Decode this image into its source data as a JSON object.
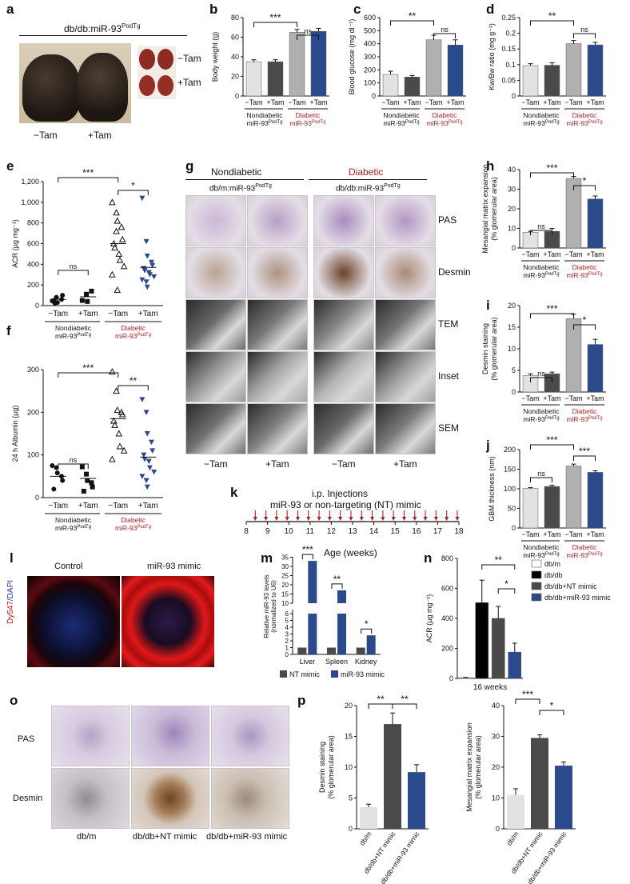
{
  "panel_letters": {
    "a": "a",
    "b": "b",
    "c": "c",
    "d": "d",
    "e": "e",
    "f": "f",
    "g": "g",
    "h": "h",
    "i": "i",
    "j": "j",
    "k": "k",
    "l": "l",
    "m": "m",
    "n": "n",
    "o": "o",
    "p": "p"
  },
  "colors": {
    "light": "#e2e2e2",
    "dark": "#4a4a4a",
    "lightgray": "#b0b0b0",
    "navy": "#2b4a8c",
    "diabetic_red": "#b01e23",
    "black": "#111111"
  },
  "group_labels": {
    "minus_tam": "−Tam",
    "plus_tam": "+Tam",
    "nondiabetic": "Nondiabetic",
    "diabetic": "Diabetic",
    "mir_podtg": "miR-93",
    "podtg_sup": "PodTg"
  },
  "panel_a": {
    "title": "db/db:miR-93",
    "title_sup": "PodTg",
    "label_minus": "−Tam",
    "label_plus": "+Tam",
    "kidney_minus": "−Tam",
    "kidney_plus": "+Tam"
  },
  "panel_g": {
    "nondiabetic": "Nondiabetic",
    "diabetic": "Diabetic",
    "dbm": "db/m:miR-93",
    "dbdb": "db/db:miR-93",
    "sup": "PodTg",
    "rows": [
      "PAS",
      "Desmin",
      "TEM",
      "Inset",
      "SEM"
    ],
    "cols": [
      "−Tam",
      "+Tam",
      "−Tam",
      "+Tam"
    ]
  },
  "panel_k": {
    "title1": "i.p. Injections",
    "title2": "miR-93 or non-targeting (NT) mimic",
    "xlabel": "Age (weeks)",
    "ticks": [
      "8",
      "9",
      "10",
      "11",
      "12",
      "13",
      "14",
      "15",
      "16",
      "17",
      "18"
    ]
  },
  "panel_l": {
    "control": "Control",
    "mimic": "miR-93 mimic",
    "ylabel1": "Dy547",
    "ylabel2": "/DAPI"
  },
  "panel_o": {
    "rows": [
      "PAS",
      "Desmin"
    ],
    "cols": [
      "db/m",
      "db/db+NT mimic",
      "db/db+miR-93 mimic"
    ]
  },
  "chart_data": [
    {
      "id": "b",
      "type": "bar",
      "ylabel": "Body weight (g)",
      "ylim": [
        0,
        80
      ],
      "yticks": [
        0,
        20,
        40,
        60,
        80
      ],
      "categories": [
        "−Tam",
        "+Tam",
        "−Tam",
        "+Tam"
      ],
      "values": [
        35,
        35,
        65,
        66
      ],
      "errors": [
        2,
        2,
        3,
        3
      ],
      "groups": [
        "Nondiabetic miR-93 PodTg",
        "Diabetic miR-93 PodTg"
      ],
      "sig": [
        "***",
        "ns"
      ]
    },
    {
      "id": "c",
      "type": "bar",
      "ylabel": "Blood glucose (mg dl⁻¹)",
      "ylim": [
        0,
        600
      ],
      "yticks": [
        0,
        100,
        200,
        300,
        400,
        500,
        600
      ],
      "categories": [
        "−Tam",
        "+Tam",
        "−Tam",
        "+Tam"
      ],
      "values": [
        165,
        145,
        430,
        390
      ],
      "errors": [
        25,
        12,
        35,
        40
      ],
      "groups": [
        "Nondiabetic miR-93 PodTg",
        "Diabetic miR-93 PodTg"
      ],
      "sig": [
        "**",
        "ns"
      ]
    },
    {
      "id": "d",
      "type": "bar",
      "ylabel": "Kw/Bw ratio (mg g⁻¹)",
      "ylim": [
        0,
        0.25
      ],
      "yticks": [
        0,
        0.05,
        0.1,
        0.15,
        0.2,
        0.25
      ],
      "categories": [
        "−Tam",
        "+Tam",
        "−Tam",
        "+Tam"
      ],
      "values": [
        0.097,
        0.098,
        0.167,
        0.163
      ],
      "errors": [
        0.006,
        0.008,
        0.01,
        0.008
      ],
      "groups": [
        "Nondiabetic miR-93 PodTg",
        "Diabetic miR-93 PodTg"
      ],
      "sig": [
        "**",
        "ns"
      ]
    },
    {
      "id": "e",
      "type": "scatter",
      "ylabel": "ACR (µg mg⁻¹)",
      "ylim": [
        0,
        1200
      ],
      "yticks": [
        0,
        200,
        400,
        600,
        800,
        1000,
        1200
      ],
      "ytick_labels": [
        "0",
        "200",
        "400",
        "600",
        "800",
        "1,000",
        "1,200"
      ],
      "categories": [
        "−Tam",
        "+Tam",
        "−Tam",
        "+Tam"
      ],
      "points": [
        [
          45,
          80,
          30,
          60,
          100,
          50,
          25
        ],
        [
          50,
          110,
          40,
          140
        ],
        [
          1000,
          900,
          820,
          760,
          640,
          600,
          560,
          500,
          440,
          380,
          300,
          720,
          150
        ],
        [
          1040,
          620,
          480,
          420,
          390,
          360,
          340,
          320,
          300,
          280,
          250,
          230,
          180
        ]
      ],
      "means": [
        60,
        85,
        600,
        370
      ],
      "sig": [
        "***",
        "*",
        "ns"
      ]
    },
    {
      "id": "f",
      "type": "scatter",
      "ylabel": "24 h Albumin (µg)",
      "ylim": [
        0,
        300
      ],
      "yticks": [
        0,
        100,
        200,
        300
      ],
      "categories": [
        "−Tam",
        "+Tam",
        "−Tam",
        "+Tam"
      ],
      "points": [
        [
          75,
          70,
          58,
          50,
          40,
          20
        ],
        [
          72,
          55,
          40,
          35,
          25,
          15
        ],
        [
          295,
          250,
          205,
          200,
          195,
          180,
          170,
          150,
          120,
          110,
          90
        ],
        [
          230,
          200,
          150,
          130,
          110,
          100,
          90,
          85,
          70,
          60,
          50,
          40,
          25
        ]
      ],
      "means": [
        50,
        45,
        185,
        95
      ],
      "sig": [
        "***",
        "**",
        "ns"
      ]
    },
    {
      "id": "h",
      "type": "bar",
      "ylabel": "Mesangial matrix expansion (% glomerular area)",
      "ylim": [
        0,
        40
      ],
      "yticks": [
        0,
        10,
        20,
        30,
        40
      ],
      "categories": [
        "−Tam",
        "+Tam",
        "−Tam",
        "+Tam"
      ],
      "values": [
        8,
        8.5,
        35.5,
        25
      ],
      "errors": [
        0.5,
        1.5,
        1,
        1.5
      ],
      "groups": [
        "Nondiabetic miR-93 PodTg",
        "Diabetic miR-93 PodTg"
      ],
      "sig": [
        "***",
        "*",
        "ns"
      ]
    },
    {
      "id": "i",
      "type": "bar",
      "ylabel": "Desmin staining (% glomerular area)",
      "ylim": [
        0,
        20
      ],
      "yticks": [
        0,
        5,
        10,
        15,
        20
      ],
      "categories": [
        "−Tam",
        "+Tam",
        "−Tam",
        "+Tam"
      ],
      "values": [
        3.8,
        4.2,
        17,
        11
      ],
      "errors": [
        0.4,
        0.4,
        1,
        1.2
      ],
      "groups": [
        "Nondiabetic miR-93 PodTg",
        "Diabetic miR-93 PodTg"
      ],
      "sig": [
        "***",
        "*",
        "ns"
      ]
    },
    {
      "id": "j",
      "type": "bar",
      "ylabel": "GBM thickness (nm)",
      "ylim": [
        0,
        200
      ],
      "yticks": [
        0,
        50,
        100,
        150,
        200
      ],
      "categories": [
        "−Tam",
        "+Tam",
        "−Tam",
        "+Tam"
      ],
      "values": [
        101,
        106,
        158,
        142
      ],
      "errors": [
        2,
        3,
        5,
        4
      ],
      "groups": [
        "Nondiabetic miR-93 PodTg",
        "Diabetic miR-93 PodTg"
      ],
      "sig": [
        "***",
        "***",
        "ns"
      ]
    },
    {
      "id": "m",
      "type": "bar",
      "ylabel": "Relative miR-93 levels (normalized to U6)",
      "yticks_low": [
        "0",
        "1",
        "2",
        "3",
        "4",
        "5",
        "6"
      ],
      "yticks_high": [
        "10",
        "15",
        "20",
        "25",
        "30",
        "35"
      ],
      "categories": [
        "Liver",
        "Spleen",
        "Kidney"
      ],
      "series": [
        {
          "name": "NT mimic",
          "values": [
            1,
            1,
            1
          ]
        },
        {
          "name": "miR-93 mimic",
          "values": [
            33,
            17,
            2.8
          ]
        }
      ],
      "sig": [
        "***",
        "**",
        "*"
      ]
    },
    {
      "id": "n",
      "type": "bar",
      "ylabel": "ACR (µg mg⁻¹)",
      "ylim": [
        0,
        800
      ],
      "yticks": [
        0,
        200,
        400,
        600,
        800
      ],
      "xlabel": "16 weeks",
      "series": [
        {
          "name": "db/m",
          "values": [
            5
          ]
        },
        {
          "name": "db/db",
          "values": [
            505
          ]
        },
        {
          "name": "db/db+NT mimic",
          "values": [
            400
          ]
        },
        {
          "name": "db/db+miR-93 mimic",
          "values": [
            175
          ]
        }
      ],
      "errors": [
        2,
        150,
        80,
        60
      ],
      "sig": [
        "**",
        "*"
      ]
    },
    {
      "id": "p1",
      "type": "bar",
      "ylabel": "Desmin staining (% glomerular area)",
      "ylim": [
        0,
        20
      ],
      "yticks": [
        0,
        5,
        10,
        15,
        20
      ],
      "categories": [
        "db/m",
        "db/db+NT mimic",
        "db/db+miR-93 mimic"
      ],
      "values": [
        3.5,
        17,
        9.2
      ],
      "errors": [
        0.5,
        1.8,
        1.2
      ],
      "sig": [
        "**",
        "**"
      ]
    },
    {
      "id": "p2",
      "type": "bar",
      "ylabel": "Mesangial matrix expansion (% glomerular area)",
      "ylim": [
        0,
        40
      ],
      "yticks": [
        0,
        10,
        20,
        30,
        40
      ],
      "categories": [
        "db/m",
        "db/db+NT mimic",
        "db/db+miR-93 mimic"
      ],
      "values": [
        11,
        29.5,
        20.5
      ],
      "errors": [
        2,
        1,
        1.2
      ],
      "sig": [
        "***",
        "*"
      ]
    }
  ]
}
